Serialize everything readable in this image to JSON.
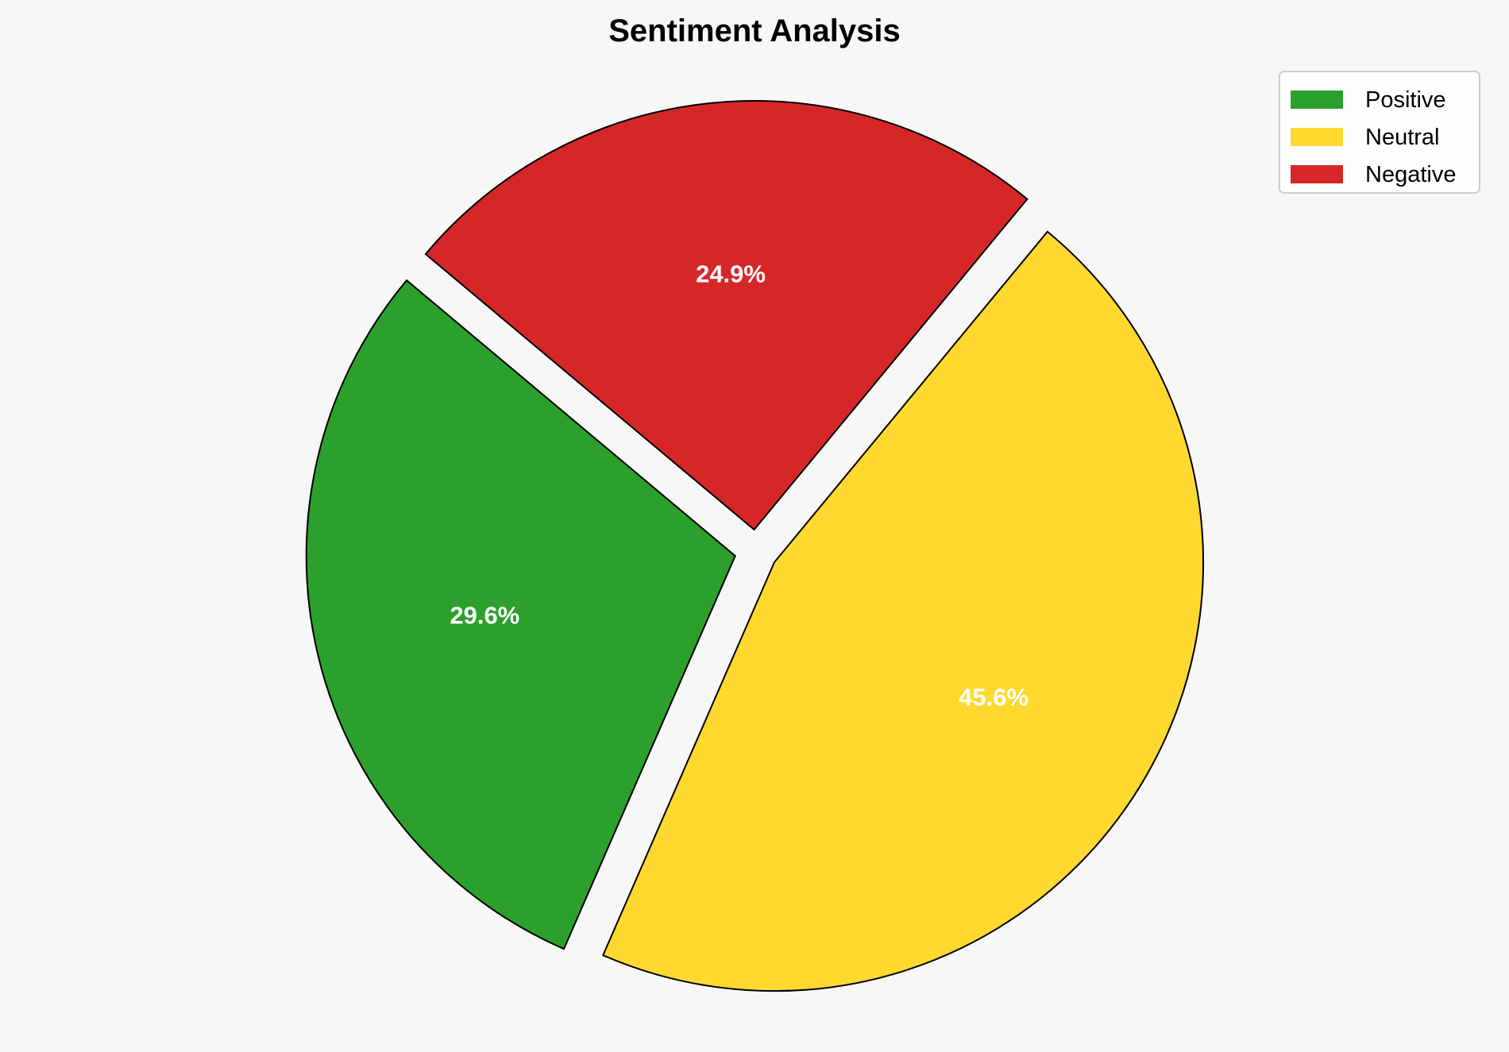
{
  "chart_data": {
    "type": "pie",
    "title": "Sentiment Analysis",
    "categories": [
      "Positive",
      "Neutral",
      "Negative"
    ],
    "values": [
      29.6,
      45.6,
      24.9
    ],
    "labels": [
      "29.6%",
      "45.6%",
      "24.9%"
    ],
    "colors": [
      "#2ca02c",
      "#ffd92f",
      "#d62728"
    ],
    "start_angle_deg": 140,
    "exploded": [
      true,
      true,
      true
    ],
    "edge_color": "#000000",
    "label_color": "#ffffff",
    "legend_position": "top-right"
  }
}
